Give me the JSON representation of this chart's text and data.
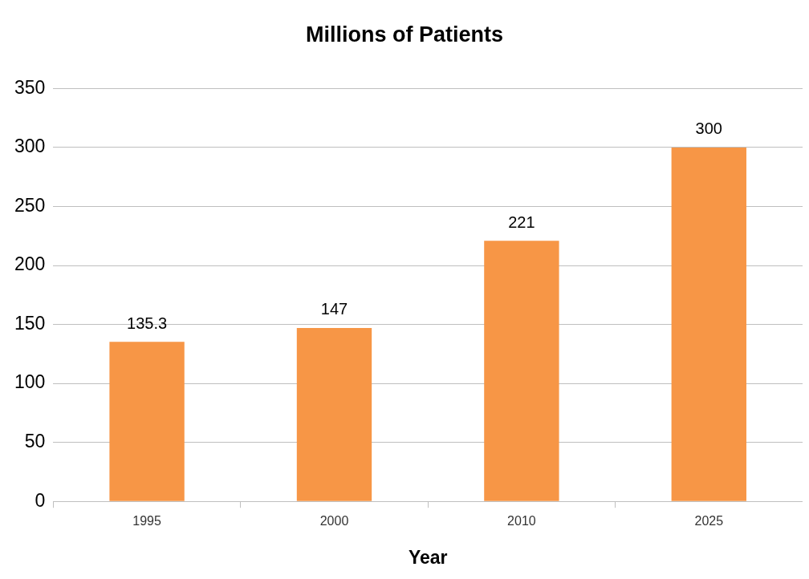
{
  "chart_data": {
    "type": "bar",
    "title": "Millions of Patients",
    "xlabel": "Year",
    "categories": [
      "1995",
      "2000",
      "2010",
      "2025"
    ],
    "values": [
      135.3,
      147,
      221,
      300
    ],
    "color": "#f79646",
    "ylim": [
      0,
      350
    ],
    "yticks": [
      0,
      50,
      100,
      150,
      200,
      250,
      300,
      350
    ],
    "grid": "y",
    "data_labels": true,
    "legend": false
  }
}
